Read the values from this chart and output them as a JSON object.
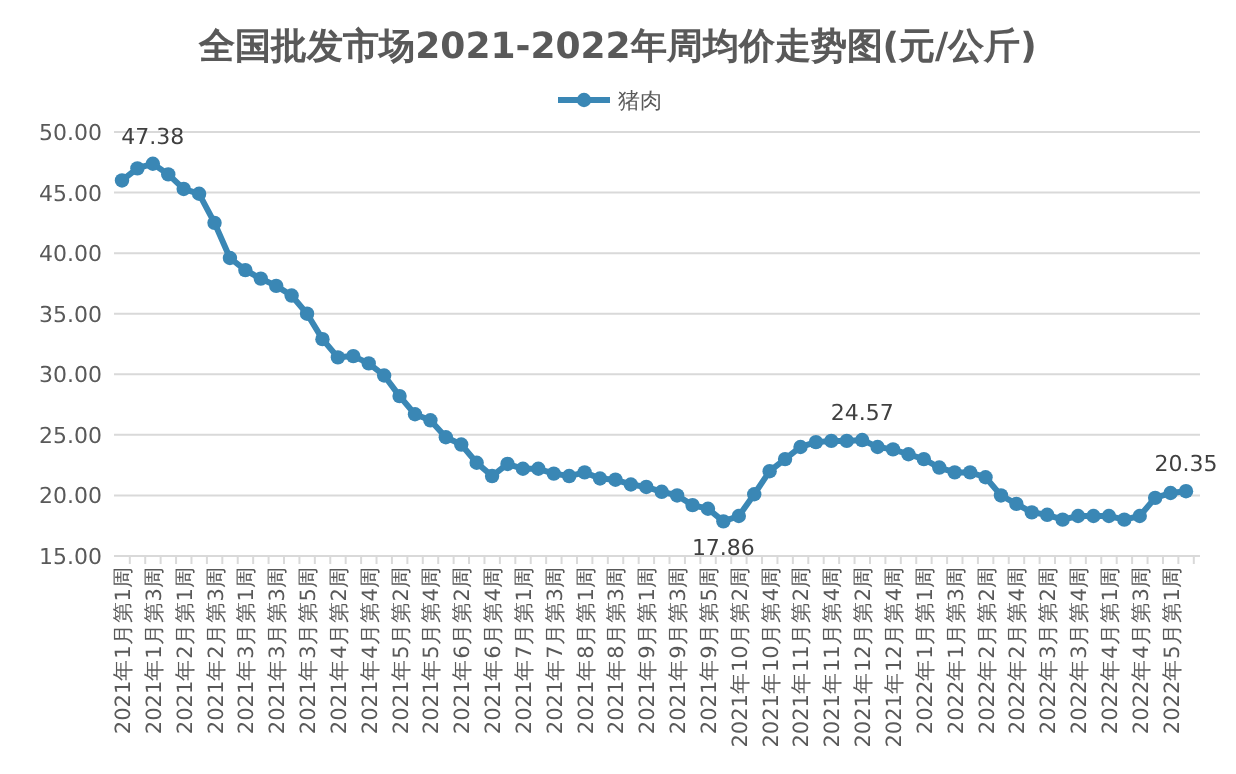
{
  "chart_data": {
    "type": "line",
    "title": "全国批发市场2021-2022年周均价走势图(元/公斤)",
    "categories": [
      "2021年1月第1周",
      null,
      "2021年1月第3周",
      null,
      "2021年2月第1周",
      null,
      "2021年2月第3周",
      null,
      "2021年3月第1周",
      null,
      "2021年3月第3周",
      null,
      "2021年3月第5周",
      null,
      "2021年4月第2周",
      null,
      "2021年4月第4周",
      null,
      "2021年5月第2周",
      null,
      "2021年5月第4周",
      null,
      "2021年6月第2周",
      null,
      "2021年6月第4周",
      null,
      "2021年7月第1周",
      null,
      "2021年7月第3周",
      null,
      "2021年8月第1周",
      null,
      "2021年8月第3周",
      null,
      "2021年9月第1周",
      null,
      "2021年9月第3周",
      null,
      "2021年9月第5周",
      null,
      "2021年10月第2周",
      null,
      "2021年10月第4周",
      null,
      "2021年11月第2周",
      null,
      "2021年11月第4周",
      null,
      "2021年12月第2周",
      null,
      "2021年12月第4周",
      null,
      "2022年1月第1周",
      null,
      "2022年1月第3周",
      null,
      "2022年2月第2周",
      null,
      "2022年2月第4周",
      null,
      "2022年3月第2周",
      null,
      "2022年3月第4周",
      null,
      "2022年4月第1周",
      null,
      "2022年4月第3周",
      null,
      "2022年5月第1周",
      null
    ],
    "series": [
      {
        "name": "猪肉",
        "color": "#3a87b5",
        "values": [
          46.0,
          47.0,
          47.38,
          46.5,
          45.3,
          44.9,
          42.5,
          39.6,
          38.6,
          37.9,
          37.3,
          36.5,
          35.0,
          32.9,
          31.4,
          31.5,
          30.9,
          29.9,
          28.2,
          26.7,
          26.2,
          24.8,
          24.2,
          22.7,
          21.6,
          22.6,
          22.2,
          22.2,
          21.8,
          21.6,
          21.9,
          21.4,
          21.3,
          20.9,
          20.7,
          20.3,
          20.0,
          19.2,
          18.9,
          17.86,
          18.3,
          20.1,
          22.0,
          23.0,
          24.0,
          24.4,
          24.5,
          24.5,
          24.57,
          24.0,
          23.8,
          23.4,
          23.0,
          22.3,
          21.9,
          21.9,
          21.5,
          20.0,
          19.3,
          18.6,
          18.4,
          18.0,
          18.3,
          18.3,
          18.3,
          18.0,
          18.3,
          19.8,
          20.2,
          20.35
        ],
        "value_labels": [
          null,
          null,
          "47.38",
          null,
          null,
          null,
          null,
          null,
          null,
          null,
          null,
          null,
          null,
          null,
          null,
          null,
          null,
          null,
          null,
          null,
          null,
          null,
          null,
          null,
          null,
          null,
          null,
          null,
          null,
          null,
          null,
          null,
          null,
          null,
          null,
          null,
          null,
          null,
          null,
          "17.86",
          null,
          null,
          null,
          null,
          null,
          null,
          null,
          null,
          "24.57",
          null,
          null,
          null,
          null,
          null,
          null,
          null,
          null,
          null,
          null,
          null,
          null,
          null,
          null,
          null,
          null,
          null,
          null,
          null,
          null,
          "20.35"
        ]
      }
    ],
    "ylim": [
      15,
      50
    ],
    "yticks": [
      {
        "value": 15,
        "label": "15.00"
      },
      {
        "value": 20,
        "label": "20.00"
      },
      {
        "value": 25,
        "label": "25.00"
      },
      {
        "value": 30,
        "label": "30.00"
      },
      {
        "value": 35,
        "label": "35.00"
      },
      {
        "value": 40,
        "label": "40.00"
      },
      {
        "value": 45,
        "label": "45.00"
      },
      {
        "value": 50,
        "label": "50.00"
      }
    ],
    "grid": "y",
    "legend": "top",
    "marker": "circle",
    "line_style": "solid"
  }
}
